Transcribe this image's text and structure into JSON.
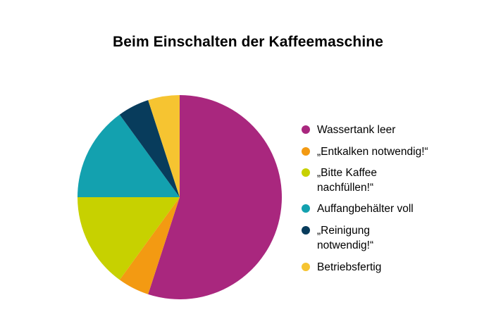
{
  "chart_data": {
    "type": "pie",
    "title": "Beim Einschalten der Kaffeemaschine",
    "start_angle_deg": 0,
    "direction": "clockwise",
    "slices": [
      {
        "label": "Wassertank leer",
        "value": 55,
        "color": "#a9277e"
      },
      {
        "label": "„Entkalken notwendig!“",
        "value": 5,
        "color": "#f39a12"
      },
      {
        "label": "„Bitte Kaffee nachfüllen!“",
        "value": 15,
        "color": "#c7d100"
      },
      {
        "label": "Auffangbehälter voll",
        "value": 15,
        "color": "#13a1af"
      },
      {
        "label": "„Reinigung notwendig!“",
        "value": 5,
        "color": "#083c5c"
      },
      {
        "label": "Betriebsfertig",
        "value": 5,
        "color": "#f6c431"
      }
    ],
    "legend_position": "right"
  }
}
